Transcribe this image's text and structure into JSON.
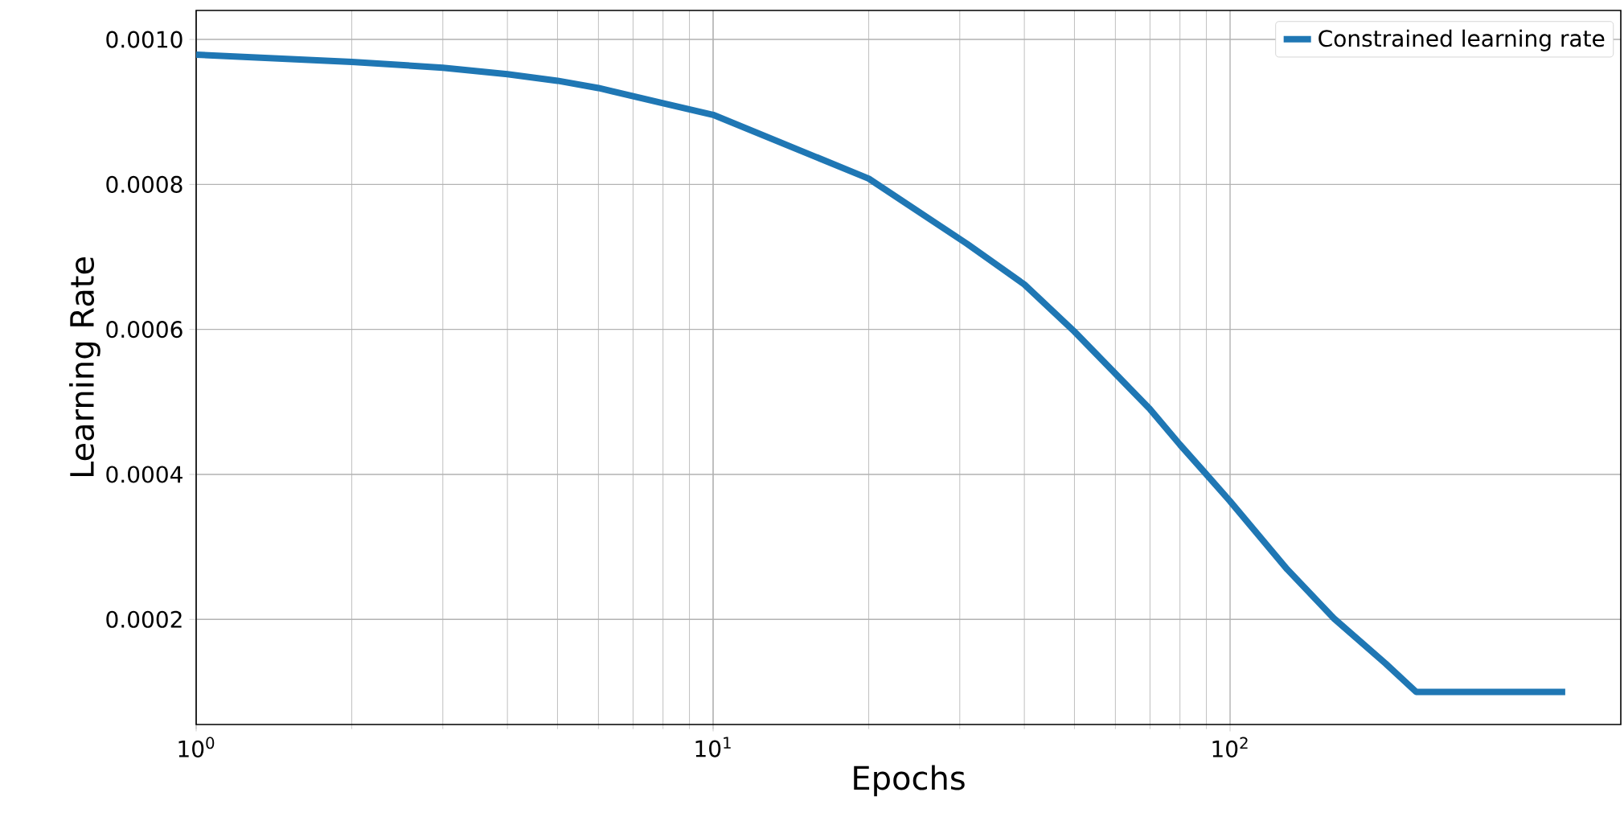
{
  "chart_data": {
    "type": "line",
    "xlabel": "Epochs",
    "ylabel": "Learning Rate",
    "x": [
      1,
      2,
      3,
      4,
      5,
      6,
      8,
      10,
      20,
      31,
      40,
      50,
      60,
      70,
      80,
      90,
      100,
      129,
      159,
      200,
      229,
      445
    ],
    "series": [
      {
        "name": "Constrained learning rate",
        "color": "#1f77b4",
        "values": [
          0.000979,
          0.000969,
          0.000961,
          0.000952,
          0.000943,
          0.000933,
          0.000912,
          0.000896,
          0.000808,
          0.000718,
          0.000662,
          0.000597,
          0.000539,
          0.00049,
          0.000441,
          0.0004,
          0.000363,
          0.000269,
          0.000201,
          0.000139,
          0.0001,
          0.0001
        ]
      }
    ],
    "log": "x",
    "xlim": [
      1,
      570
    ],
    "ylim": [
      5.5e-05,
      0.00104
    ],
    "xticks": [
      {
        "value": 1,
        "label": "10$^{0}$"
      },
      {
        "value": 10,
        "label": "10$^{1}$"
      },
      {
        "value": 100,
        "label": "10$^{2}$"
      }
    ],
    "yticks": [
      {
        "value": 0.0002,
        "label": "0.0002"
      },
      {
        "value": 0.0004,
        "label": "0.0004"
      },
      {
        "value": 0.0006,
        "label": "0.0006"
      },
      {
        "value": 0.0008,
        "label": "0.0008"
      },
      {
        "value": 0.001,
        "label": "0.0010"
      }
    ],
    "grid": true,
    "legend": "top right",
    "marker": "none",
    "line_style": "solid"
  }
}
